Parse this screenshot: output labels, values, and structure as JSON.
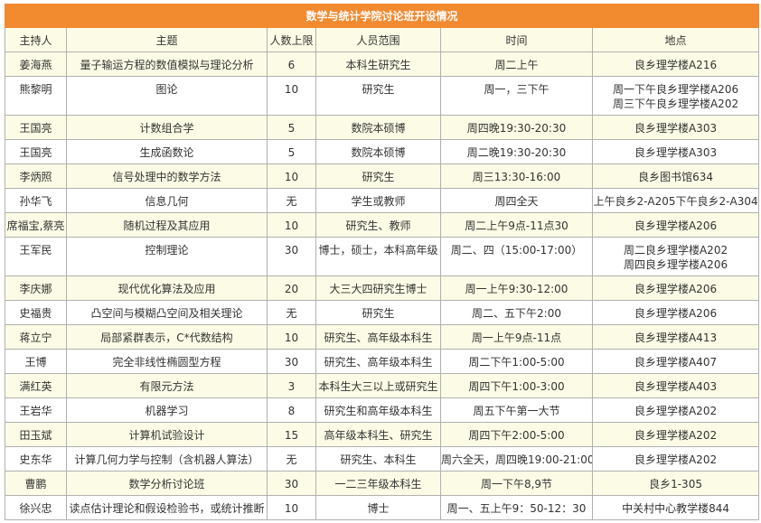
{
  "title": "数学与统计学院讨论班开设情况",
  "colors": {
    "title_bg": "#f28a30",
    "stripe": "#fcfce6"
  },
  "columns": [
    "主持人",
    "主题",
    "人数上限",
    "人员范围",
    "时间",
    "地点"
  ],
  "rows": [
    [
      "姜海燕",
      "量子输运方程的数值模拟与理论分析",
      "6",
      "本科生研究生",
      "周二上午",
      "良乡理学楼A216"
    ],
    [
      "熊黎明",
      "图论",
      "10",
      "研究生",
      "周一，三下午",
      "周一下午良乡理学楼A206\n周三下午良乡理学楼A202"
    ],
    [
      "王国亮",
      "计数组合学",
      "5",
      "数院本硕博",
      "周四晚19:30-20:30",
      "良乡理学楼A303"
    ],
    [
      "王国亮",
      "生成函数论",
      "5",
      "数院本硕博",
      "周二晚19:30-20:30",
      "良乡理学楼A303"
    ],
    [
      "李炳照",
      "信号处理中的数学方法",
      "10",
      "研究生",
      "周三13:30-16:00",
      "良乡图书馆634"
    ],
    [
      "孙华飞",
      "信息几何",
      "无",
      "学生或教师",
      "周四全天",
      "上午良乡2-A205下午良乡2-A304"
    ],
    [
      "席福宝,蔡亮",
      "随机过程及其应用",
      "10",
      "研究生、教师",
      "周二上午9点-11点30",
      "良乡理学楼A206"
    ],
    [
      "王军民",
      "控制理论",
      "30",
      "博士，硕士，本科高年级",
      "周二、四（15:00-17:00）",
      "周二良乡理学楼A202\n周四良乡理学楼A206"
    ],
    [
      "李庆娜",
      "现代优化算法及应用",
      "20",
      "大三大四研究生博士",
      "周一上午9:30-12:00",
      "良乡理学楼A206"
    ],
    [
      "史福贵",
      "凸空间与模糊凸空间及相关理论",
      "无",
      "研究生",
      "周二、五下午2:00",
      "良乡理学楼A206"
    ],
    [
      "蒋立宁",
      "局部紧群表示，C*代数结构",
      "10",
      "研究生、高年级本科生",
      "周一上午9点-11点",
      "良乡理学楼A413"
    ],
    [
      "王博",
      "完全非线性椭圆型方程",
      "30",
      "研究生、高年级本科生",
      "周二下午1:00-5:00",
      "良乡理学楼A407"
    ],
    [
      "满红英",
      "有限元方法",
      "3",
      "本科生大三以上或研究生",
      "周四下午1:00-3:00",
      "良乡理学楼A403"
    ],
    [
      "王岩华",
      "机器学习",
      "8",
      "研究生和高年级本科生",
      "周五下午第一大节",
      "良乡理学楼A202"
    ],
    [
      "田玉斌",
      "计算机试验设计",
      "15",
      "高年级本科生、研究生",
      "周四下午2:00-5:00",
      "良乡理学楼A202"
    ],
    [
      "史东华",
      "计算几何力学与控制（含机器人算法）",
      "无",
      "研究生、本科生",
      "周六全天，周四晚19:00-21:00",
      "良乡理学楼A202"
    ],
    [
      "曹鹏",
      "数学分析讨论班",
      "30",
      "一二三年级本科生",
      "周一下午8,9节",
      "良乡1-305"
    ],
    [
      "徐兴忠",
      "读点估计理论和假设检验书，或统计推断",
      "10",
      "博士",
      "周一、五上午9：50-12：30",
      "中关村中心教学楼844"
    ]
  ]
}
